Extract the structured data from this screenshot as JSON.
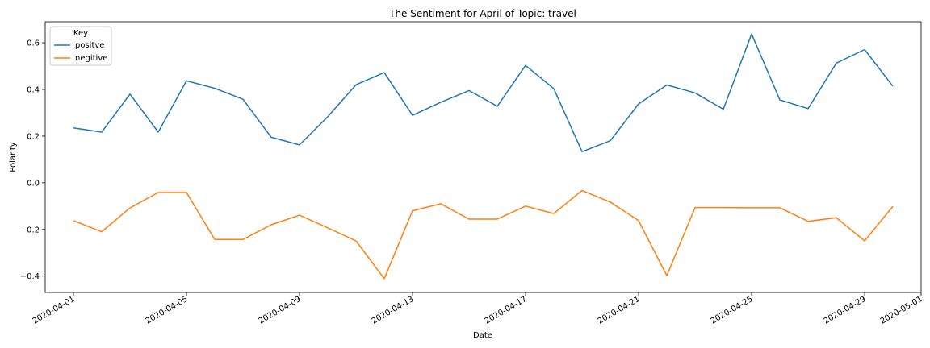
{
  "chart_data": {
    "type": "line",
    "title": "The Sentiment for April of Topic: travel",
    "xlabel": "Date",
    "ylabel": "Polarity",
    "xlim": [
      "2020-03-31",
      "2020-05-01"
    ],
    "ylim": [
      -0.47,
      0.69
    ],
    "grid": false,
    "legend": {
      "title": "Key",
      "placement": "top-left"
    },
    "x_ticks": [
      "2020-04-01",
      "2020-04-05",
      "2020-04-09",
      "2020-04-13",
      "2020-04-17",
      "2020-04-21",
      "2020-04-25",
      "2020-04-29",
      "2020-05-01"
    ],
    "y_ticks": [
      -0.4,
      -0.2,
      0.0,
      0.2,
      0.4,
      0.6
    ],
    "y_tick_labels": [
      "−0.4",
      "−0.2",
      "0.0",
      "0.2",
      "0.4",
      "0.6"
    ],
    "x": [
      "2020-04-01",
      "2020-04-02",
      "2020-04-03",
      "2020-04-04",
      "2020-04-05",
      "2020-04-06",
      "2020-04-07",
      "2020-04-08",
      "2020-04-09",
      "2020-04-10",
      "2020-04-11",
      "2020-04-12",
      "2020-04-13",
      "2020-04-14",
      "2020-04-15",
      "2020-04-16",
      "2020-04-17",
      "2020-04-18",
      "2020-04-19",
      "2020-04-20",
      "2020-04-21",
      "2020-04-22",
      "2020-04-23",
      "2020-04-24",
      "2020-04-25",
      "2020-04-26",
      "2020-04-27",
      "2020-04-28",
      "2020-04-29",
      "2020-04-30"
    ],
    "series": [
      {
        "name": "positve",
        "color": "#1f77b4",
        "values": [
          0.235,
          0.217,
          0.38,
          0.217,
          0.437,
          0.405,
          0.358,
          0.195,
          0.162,
          0.283,
          0.42,
          0.472,
          0.289,
          0.345,
          0.395,
          0.328,
          0.503,
          0.403,
          0.133,
          0.18,
          0.338,
          0.419,
          0.385,
          0.315,
          0.638,
          0.355,
          0.318,
          0.513,
          0.571,
          0.414
        ]
      },
      {
        "name": "negitive",
        "color": "#ff7f0e",
        "values": [
          -0.162,
          -0.21,
          -0.108,
          -0.042,
          -0.042,
          -0.243,
          -0.243,
          -0.18,
          -0.139,
          -0.193,
          -0.249,
          -0.411,
          -0.12,
          -0.09,
          -0.156,
          -0.156,
          -0.1,
          -0.132,
          -0.033,
          -0.083,
          -0.162,
          -0.398,
          -0.106,
          -0.106,
          -0.107,
          -0.107,
          -0.165,
          -0.15,
          -0.249,
          -0.101
        ]
      }
    ]
  }
}
